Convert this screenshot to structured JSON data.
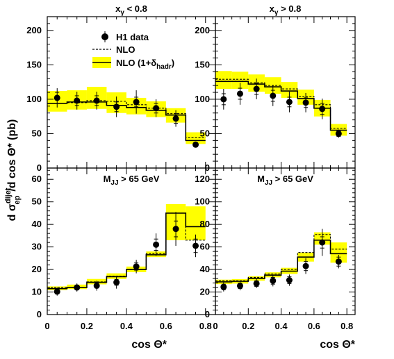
{
  "figure": {
    "ylabel": "d σ",
    "ylabel_sub": "ep",
    "ylabel_sup": "dijet",
    "ylabel_tail": "/d cos Θ* (pb)",
    "xlabel": "cos Θ*"
  },
  "legend": {
    "data_label": "H1 data",
    "nlo_label": "NLO",
    "nlo_had_label": "NLO (1+δ",
    "nlo_had_sub": "hadr",
    "nlo_had_close": ")"
  },
  "chart_data": [
    {
      "type": "scatter",
      "title_base": "x",
      "title_sub": "γ",
      "title_rest": " < 0.8",
      "x": [
        0.05,
        0.15,
        0.25,
        0.35,
        0.45,
        0.55,
        0.65,
        0.75
      ],
      "bins": [
        0,
        0.1,
        0.2,
        0.3,
        0.4,
        0.5,
        0.6,
        0.7,
        0.8
      ],
      "series": [
        {
          "name": "H1 data",
          "values": [
            102,
            98,
            98,
            89,
            96,
            87,
            72,
            34
          ],
          "err_stat": [
            8,
            7,
            7,
            7,
            7,
            7,
            7,
            3
          ],
          "err_tot": [
            14,
            13,
            13,
            15,
            17,
            13,
            12,
            4
          ]
        },
        {
          "name": "NLO",
          "values": [
            94,
            95,
            98,
            97,
            92,
            87,
            79,
            44
          ]
        },
        {
          "name": "NLO (1+δhadr)",
          "values": [
            94,
            96,
            96,
            91,
            88,
            84,
            77,
            40
          ],
          "band_low": [
            82,
            85,
            86,
            80,
            78,
            74,
            66,
            35
          ],
          "band_high": [
            112,
            113,
            118,
            110,
            102,
            97,
            87,
            52
          ]
        }
      ],
      "xlim": [
        0,
        0.85
      ],
      "ylim": [
        0,
        220
      ],
      "yticks": [
        0,
        50,
        100,
        150,
        200
      ],
      "xticks": [
        0,
        0.2,
        0.4,
        0.6,
        0.8
      ],
      "legend": "top-left"
    },
    {
      "type": "scatter",
      "title_base": "x",
      "title_sub": "γ",
      "title_rest": " > 0.8",
      "x": [
        0.05,
        0.15,
        0.25,
        0.35,
        0.45,
        0.55,
        0.65,
        0.75
      ],
      "bins": [
        0,
        0.1,
        0.2,
        0.3,
        0.4,
        0.5,
        0.6,
        0.7,
        0.8
      ],
      "series": [
        {
          "name": "H1 data",
          "values": [
            100,
            108,
            115,
            105,
            96,
            95,
            86,
            50
          ],
          "err_stat": [
            8,
            8,
            8,
            8,
            7,
            7,
            8,
            4
          ],
          "err_tot": [
            15,
            16,
            15,
            15,
            15,
            14,
            15,
            6
          ]
        },
        {
          "name": "NLO",
          "values": [
            129,
            129,
            124,
            120,
            115,
            104,
            92,
            58
          ]
        },
        {
          "name": "NLO (1+δhadr)",
          "values": [
            126,
            126,
            122,
            118,
            112,
            101,
            87,
            55
          ],
          "band_low": [
            115,
            115,
            111,
            108,
            102,
            92,
            75,
            47
          ],
          "band_high": [
            141,
            140,
            136,
            132,
            125,
            114,
            99,
            64
          ]
        }
      ],
      "xlim": [
        0,
        0.85
      ],
      "ylim": [
        0,
        220
      ],
      "yticks": [
        0,
        50,
        100,
        150,
        200
      ],
      "xticks": [
        0,
        0.2,
        0.4,
        0.6,
        0.8
      ]
    },
    {
      "type": "scatter",
      "title_base": "M",
      "title_sub": "JJ",
      "title_rest": " > 65 GeV",
      "x": [
        0.05,
        0.15,
        0.25,
        0.35,
        0.45,
        0.55,
        0.65,
        0.75
      ],
      "bins": [
        0,
        0.1,
        0.2,
        0.3,
        0.4,
        0.5,
        0.6,
        0.7,
        0.8
      ],
      "series": [
        {
          "name": "H1 data",
          "values": [
            10.2,
            12.0,
            12.8,
            14.3,
            21.3,
            31.0,
            38.0,
            30.5
          ],
          "err_stat": [
            1,
            1,
            1,
            1.3,
            1.6,
            2.5,
            3.5,
            3
          ],
          "err_tot": [
            1.8,
            1.8,
            2.2,
            2.8,
            3,
            5,
            7.5,
            5
          ]
        },
        {
          "name": "NLO",
          "values": [
            12.0,
            12.0,
            14.5,
            17.0,
            20.0,
            27.0,
            45.0,
            33.0
          ]
        },
        {
          "name": "NLO (1+δhadr)",
          "values": [
            11.5,
            12.0,
            14.3,
            16.8,
            20.0,
            26.5,
            45.0,
            39.0
          ],
          "band_low": [
            10.8,
            11.3,
            13.4,
            15.8,
            18.8,
            25.5,
            33.0,
            33.0
          ],
          "band_high": [
            12.5,
            13.3,
            15.8,
            18.3,
            21.3,
            28.0,
            49.0,
            48.0
          ]
        }
      ],
      "xlim": [
        0,
        0.85
      ],
      "ylim": [
        0,
        65
      ],
      "yticks": [
        0,
        10,
        20,
        30,
        40,
        50,
        60
      ],
      "xticks": [
        0,
        0.2,
        0.4,
        0.6,
        0.8
      ]
    },
    {
      "type": "scatter",
      "title_base": "M",
      "title_sub": "JJ",
      "title_rest": " > 65 GeV",
      "x": [
        0.05,
        0.15,
        0.25,
        0.35,
        0.45,
        0.55,
        0.65,
        0.75
      ],
      "bins": [
        0,
        0.1,
        0.2,
        0.3,
        0.4,
        0.5,
        0.6,
        0.7,
        0.8
      ],
      "series": [
        {
          "name": "H1 data",
          "values": [
            24.5,
            25.5,
            27.5,
            30.0,
            30.5,
            43.0,
            64.0,
            47.0
          ],
          "err_stat": [
            2.5,
            2.5,
            2.5,
            3,
            3,
            4,
            5,
            4
          ],
          "err_tot": [
            4,
            4,
            4,
            5,
            5,
            7,
            12,
            6
          ]
        },
        {
          "name": "NLO",
          "values": [
            30.0,
            30.0,
            33.0,
            36.0,
            40.0,
            55.0,
            71.0,
            58.0
          ]
        },
        {
          "name": "NLO (1+δhadr)",
          "values": [
            29.0,
            29.5,
            32.0,
            35.0,
            38.5,
            51.0,
            66.0,
            54.0
          ],
          "band_low": [
            27.0,
            27.5,
            30.0,
            33.0,
            36.0,
            47.0,
            62.0,
            46.0
          ],
          "band_high": [
            31.0,
            31.5,
            34.0,
            37.5,
            41.5,
            55.0,
            73.0,
            64.0
          ]
        }
      ],
      "xlim": [
        0,
        0.85
      ],
      "ylim": [
        0,
        130
      ],
      "yticks": [
        0,
        20,
        40,
        60,
        80,
        100,
        120
      ],
      "xticks": [
        0,
        0.2,
        0.4,
        0.6,
        0.8
      ]
    }
  ],
  "colors": {
    "band": "#ffff00",
    "axis": "#000000",
    "marker": "#000000"
  }
}
